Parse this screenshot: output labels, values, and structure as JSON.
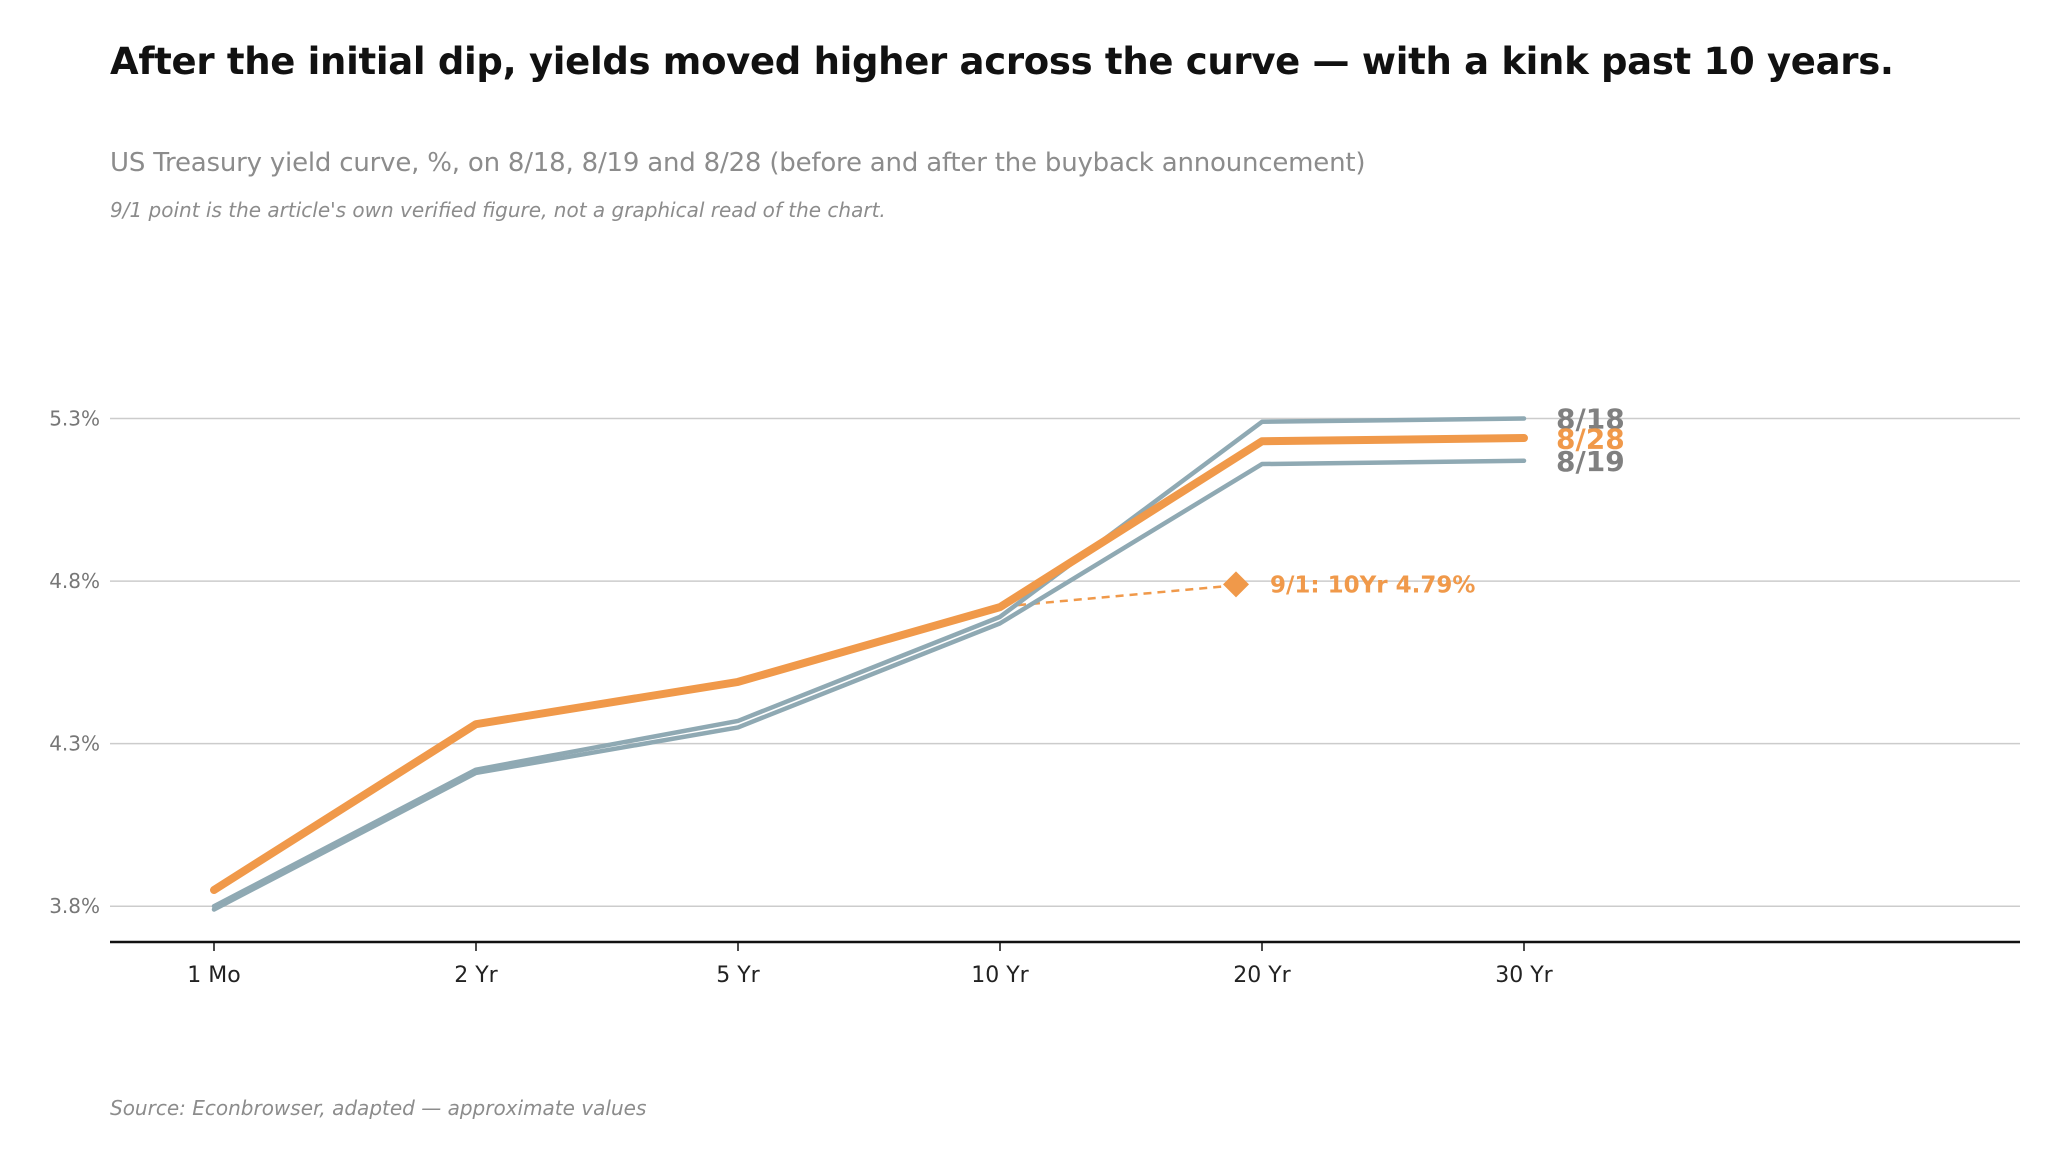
{
  "chart_data": {
    "type": "line",
    "title": "After the initial dip, yields moved higher across the curve — with a kink past 10 years.",
    "subtitle": "US Treasury yield curve, %, on 8/18, 8/19 and 8/28 (before and after the buyback announcement)",
    "note": "9/1 point is the article's own verified figure, not a graphical read of the chart.",
    "source": "Source: Econbrowser, adapted — approximate values",
    "categories": [
      "1 Mo",
      "2 Yr",
      "5 Yr",
      "10 Yr",
      "20 Yr",
      "30 Yr"
    ],
    "y_ticks": [
      {
        "value": 3.8,
        "label": "3.8%"
      },
      {
        "value": 4.3,
        "label": "4.3%"
      },
      {
        "value": 4.8,
        "label": "4.8%"
      },
      {
        "value": 5.3,
        "label": "5.3%"
      }
    ],
    "ylim": [
      3.69,
      5.48
    ],
    "grid": true,
    "series": [
      {
        "name": "8/18",
        "color": "#8fa9b3",
        "emphasis": false,
        "values": [
          3.8,
          4.22,
          4.37,
          4.69,
          5.29,
          5.3
        ]
      },
      {
        "name": "8/19",
        "color": "#8fa9b3",
        "emphasis": false,
        "values": [
          3.79,
          4.21,
          4.35,
          4.67,
          5.16,
          5.17
        ]
      },
      {
        "name": "8/28",
        "color": "#f0994a",
        "emphasis": true,
        "values": [
          3.85,
          4.36,
          4.49,
          4.72,
          5.23,
          5.24
        ]
      }
    ],
    "annotation": {
      "label": "9/1: 10Yr 4.79%",
      "value": 4.79,
      "anchor_category": "10 Yr",
      "color": "#f0994a"
    }
  }
}
